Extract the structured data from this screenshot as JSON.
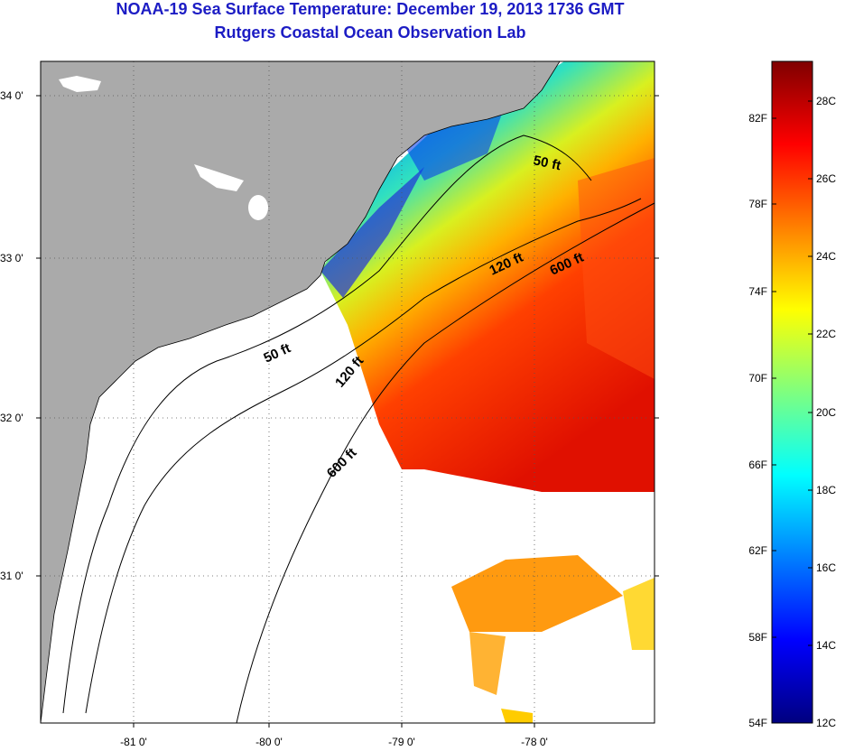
{
  "header": {
    "title": "NOAA-19 Sea Surface Temperature:  December 19, 2013 1736 GMT",
    "subtitle": "Rutgers Coastal Ocean Observation Lab"
  },
  "map": {
    "lat_labels": [
      "34 0'",
      "33 0'",
      "32 0'",
      "31 0'"
    ],
    "lon_labels": [
      "-81 0'",
      "-80 0'",
      "-79 0'",
      "-78 0'"
    ],
    "contours": [
      {
        "label": "50 ft"
      },
      {
        "label": "50 ft"
      },
      {
        "label": "120 ft"
      },
      {
        "label": "120 ft"
      },
      {
        "label": "600 ft"
      },
      {
        "label": "600 ft"
      }
    ],
    "colors": {
      "land": "#aaaaaa",
      "no_data": "#ffffff",
      "grid": "#555555"
    }
  },
  "colorbar": {
    "fahrenheit": [
      "82F",
      "78F",
      "74F",
      "70F",
      "66F",
      "62F",
      "58F",
      "54F"
    ],
    "celsius": [
      "28C",
      "26C",
      "24C",
      "22C",
      "20C",
      "18C",
      "16C",
      "14C",
      "12C"
    ],
    "range_c": [
      12,
      29.5
    ],
    "stops": [
      "#00007f",
      "#0000ff",
      "#007fff",
      "#00ffff",
      "#7fff7f",
      "#ffff00",
      "#ff7f00",
      "#ff0000",
      "#7f0000"
    ]
  }
}
